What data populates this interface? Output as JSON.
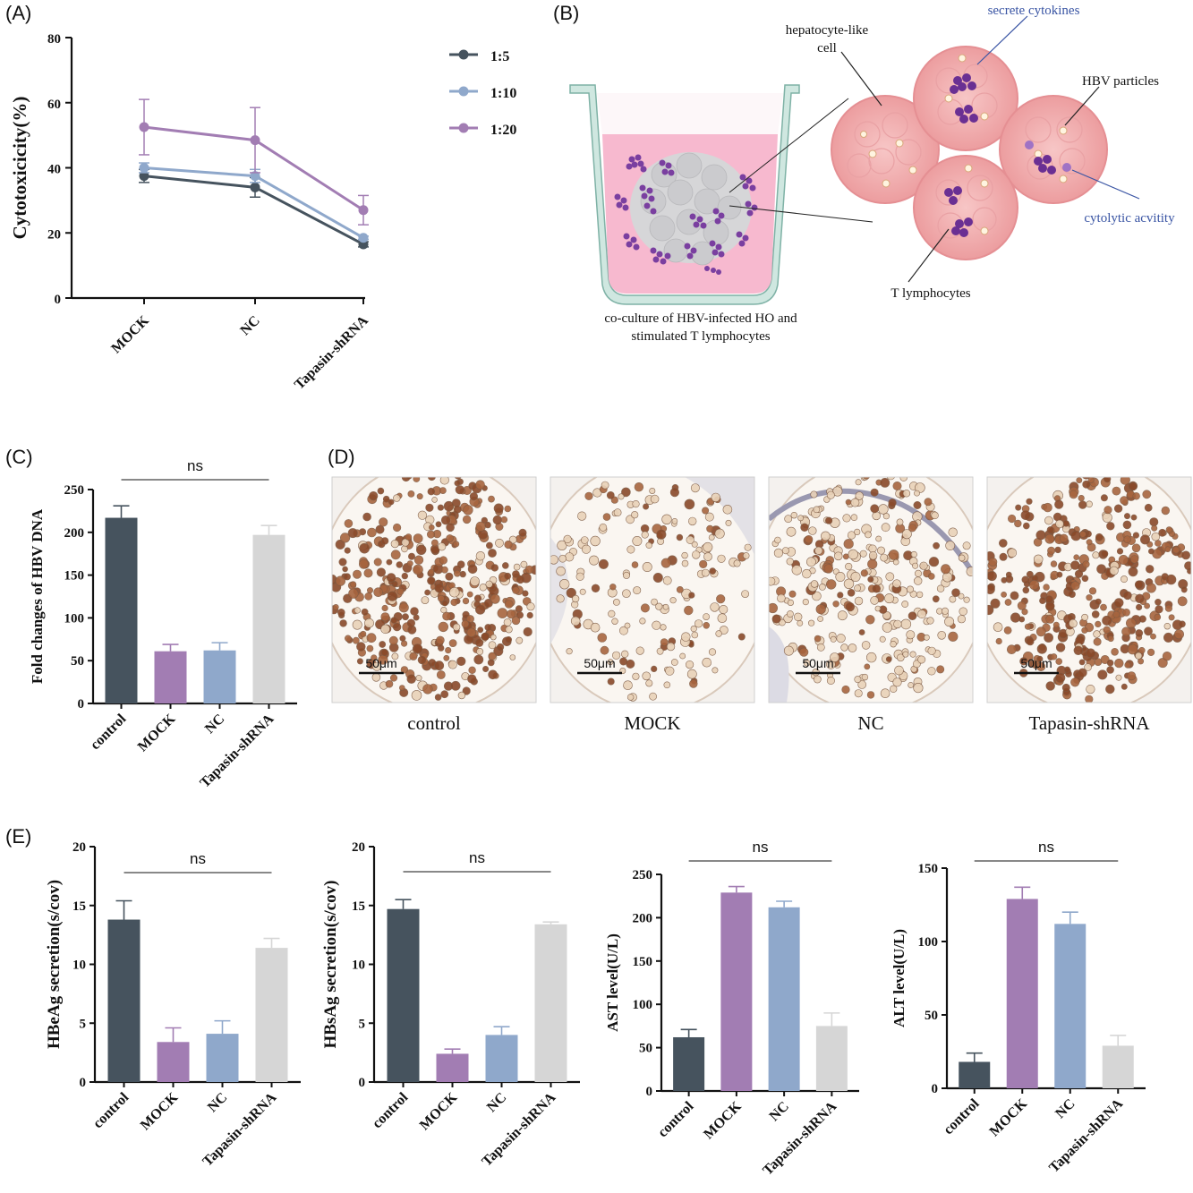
{
  "panels": {
    "A": "(A)",
    "B": "(B)",
    "C": "(C)",
    "D": "(D)",
    "E": "(E)"
  },
  "colors": {
    "control": "#46535e",
    "mock": "#a27db3",
    "nc": "#8fa8cb",
    "tapasin": "#d6d6d6",
    "s15": "#46535e",
    "s110": "#8fa8cb",
    "s120": "#a27db3"
  },
  "chart_data": [
    {
      "id": "A",
      "type": "line",
      "categories": [
        "MOCK",
        "NC",
        "Tapasin-shRNA"
      ],
      "ylabel": "Cytotoxicicity(%)",
      "ylim": [
        0,
        80
      ],
      "yticks": [
        0,
        20,
        40,
        60,
        80
      ],
      "legend_position": "right",
      "series": [
        {
          "name": "1:5",
          "values": [
            37.5,
            34,
            16.5
          ],
          "errors": [
            2,
            3,
            0.8
          ]
        },
        {
          "name": "1:10",
          "values": [
            40,
            37.5,
            18.5
          ],
          "errors": [
            1.5,
            2,
            0.5
          ]
        },
        {
          "name": "1:20",
          "values": [
            52.5,
            48.5,
            27
          ],
          "errors": [
            8.5,
            10,
            4.5
          ]
        }
      ]
    },
    {
      "id": "C",
      "type": "bar",
      "categories": [
        "control",
        "MOCK",
        "NC",
        "Tapasin-shRNA"
      ],
      "values": [
        217,
        61,
        62,
        197
      ],
      "errors": [
        14,
        8,
        9,
        11
      ],
      "ylabel": "Fold changes of HBV DNA",
      "ylim": [
        0,
        250
      ],
      "yticks": [
        0,
        50,
        100,
        150,
        200,
        250
      ],
      "significance": "ns"
    },
    {
      "id": "E1",
      "type": "bar",
      "categories": [
        "control",
        "MOCK",
        "NC",
        "Tapasin-shRNA"
      ],
      "values": [
        13.8,
        3.4,
        4.1,
        11.4
      ],
      "errors": [
        1.6,
        1.2,
        1.1,
        0.8
      ],
      "ylabel": "HBeAg secretion(s/cov)",
      "ylim": [
        0,
        20
      ],
      "yticks": [
        0,
        5,
        10,
        15,
        20
      ],
      "significance": "ns"
    },
    {
      "id": "E2",
      "type": "bar",
      "categories": [
        "control",
        "MOCK",
        "NC",
        "Tapasin-shRNA"
      ],
      "values": [
        14.7,
        2.4,
        4.0,
        13.4
      ],
      "errors": [
        0.8,
        0.4,
        0.7,
        0.2
      ],
      "ylabel": "HBsAg secretion(s/cov)",
      "ylim": [
        0,
        20
      ],
      "yticks": [
        0,
        5,
        10,
        15,
        20
      ],
      "significance": "ns"
    },
    {
      "id": "E3",
      "type": "bar",
      "categories": [
        "control",
        "MOCK",
        "NC",
        "Tapasin-shRNA"
      ],
      "values": [
        62,
        229,
        212,
        75
      ],
      "errors": [
        9,
        7,
        7,
        15
      ],
      "ylabel": "AST level(U/L)",
      "ylim": [
        0,
        250
      ],
      "yticks": [
        0,
        50,
        100,
        150,
        200,
        250
      ],
      "significance": "ns"
    },
    {
      "id": "E4",
      "type": "bar",
      "categories": [
        "control",
        "MOCK",
        "NC",
        "Tapasin-shRNA"
      ],
      "values": [
        18,
        129,
        112,
        29
      ],
      "errors": [
        6,
        8,
        8,
        7
      ],
      "ylabel": "ALT level(U/L)",
      "ylim": [
        0,
        150
      ],
      "yticks": [
        0,
        50,
        100,
        150
      ],
      "significance": "ns"
    }
  ],
  "diagram": {
    "hepatocyte_label_line1": "hepatocyte-like",
    "hepatocyte_label_line2": "cell",
    "cytokines": "secrete cytokines",
    "hbv_particles": "HBV particles",
    "cytolytic": "cytolytic acvitity",
    "t_lymphocytes": "T lymphocytes",
    "caption_line1": "co-culture of HBV-infected HO and",
    "caption_line2": "stimulated T lymphocytes"
  },
  "micrographs": {
    "labels": [
      "control",
      "MOCK",
      "NC",
      "Tapasin-shRNA"
    ],
    "scale_bar": "50μm"
  }
}
